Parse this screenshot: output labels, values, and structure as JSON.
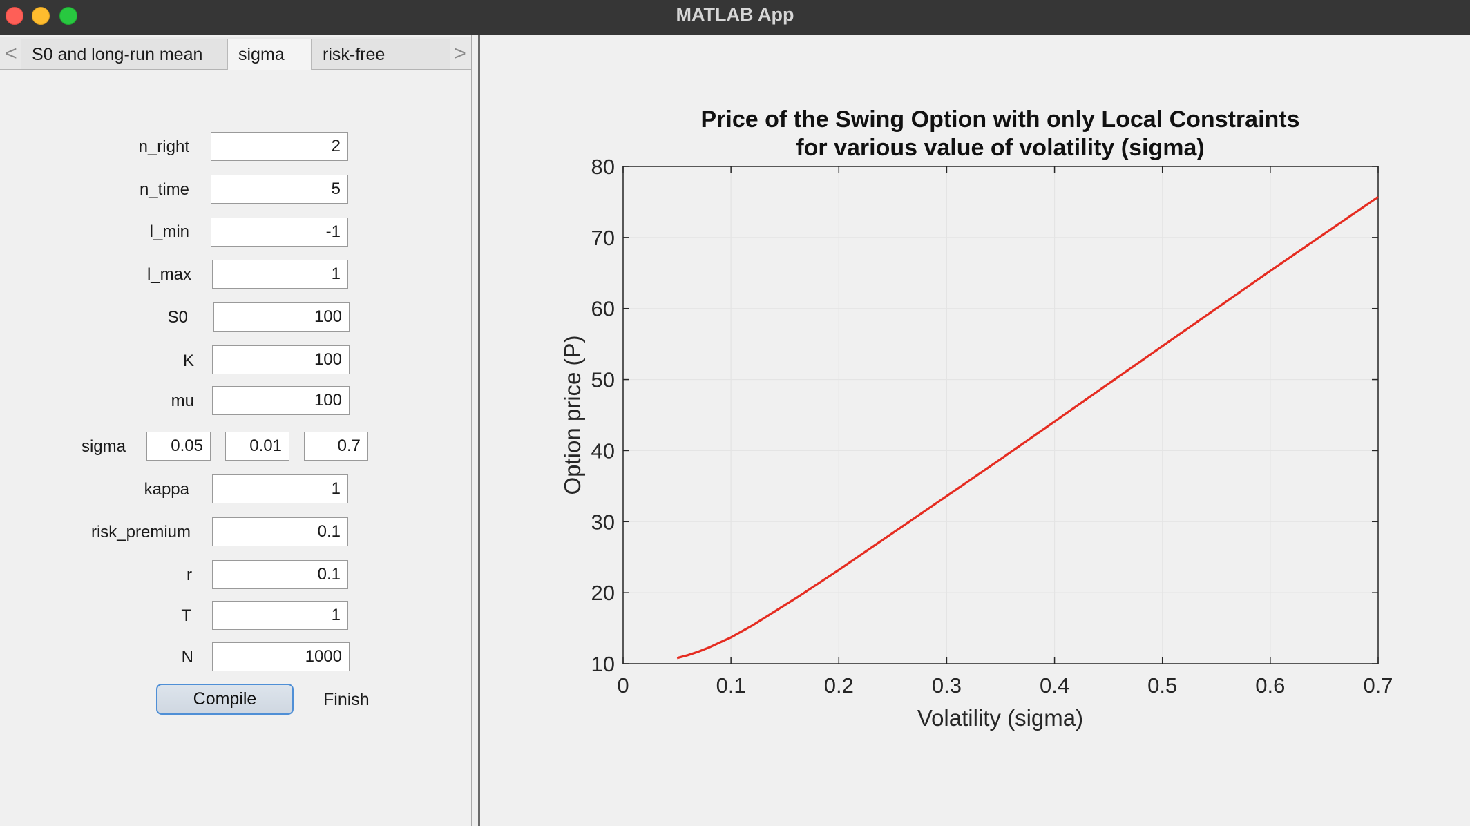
{
  "window": {
    "title": "MATLAB App"
  },
  "tabs": {
    "left_arrow": "<",
    "right_arrow": ">",
    "items": [
      "S0 and long-run mean",
      "sigma",
      "risk-free"
    ],
    "active": "sigma"
  },
  "form": {
    "n_right": {
      "label": "n_right",
      "value": "2"
    },
    "n_time": {
      "label": "n_time",
      "value": "5"
    },
    "l_min": {
      "label": "l_min",
      "value": "-1"
    },
    "l_max": {
      "label": "l_max",
      "value": "1"
    },
    "s0": {
      "label": "S0",
      "value": "100"
    },
    "k": {
      "label": "K",
      "value": "100"
    },
    "mu": {
      "label": "mu",
      "value": "100"
    },
    "sigma": {
      "label": "sigma",
      "start": "0.05",
      "step": "0.01",
      "end": "0.7"
    },
    "kappa": {
      "label": "kappa",
      "value": "1"
    },
    "risk_premium": {
      "label": "risk_premium",
      "value": "0.1"
    },
    "r": {
      "label": "r",
      "value": "0.1"
    },
    "t": {
      "label": "T",
      "value": "1"
    },
    "n": {
      "label": "N",
      "value": "1000"
    }
  },
  "buttons": {
    "compile": "Compile",
    "finish": "Finish"
  },
  "colors": {
    "line": "#e52c21",
    "grid": "#e4e4e4",
    "axes": "#262626"
  },
  "chart_data": {
    "type": "line",
    "title": [
      "Price of the Swing Option with only Local Constraints",
      "for various value of volatility (sigma)"
    ],
    "xlabel": "Volatility (sigma)",
    "ylabel": "Option price (P)",
    "xlim": [
      0,
      0.7
    ],
    "ylim": [
      10,
      80
    ],
    "xticks": [
      0,
      0.1,
      0.2,
      0.3,
      0.4,
      0.5,
      0.6,
      0.7
    ],
    "xtick_labels": [
      "0",
      "0.1",
      "0.2",
      "0.3",
      "0.4",
      "0.5",
      "0.6",
      "0.7"
    ],
    "yticks": [
      10,
      20,
      30,
      40,
      50,
      60,
      70,
      80
    ],
    "ytick_labels": [
      "10",
      "20",
      "30",
      "40",
      "50",
      "60",
      "70",
      "80"
    ],
    "grid": true,
    "series": [
      {
        "x": [
          0.05,
          0.06,
          0.07,
          0.08,
          0.09,
          0.1,
          0.12,
          0.14,
          0.16,
          0.18,
          0.2,
          0.25,
          0.3,
          0.35,
          0.4,
          0.45,
          0.5,
          0.55,
          0.6,
          0.65,
          0.7
        ],
        "y": [
          10.8,
          11.2,
          11.7,
          12.3,
          13.0,
          13.7,
          15.4,
          17.3,
          19.2,
          21.2,
          23.2,
          28.4,
          33.6,
          38.8,
          44.1,
          49.4,
          54.7,
          60.0,
          65.3,
          70.5,
          75.7
        ]
      }
    ]
  }
}
